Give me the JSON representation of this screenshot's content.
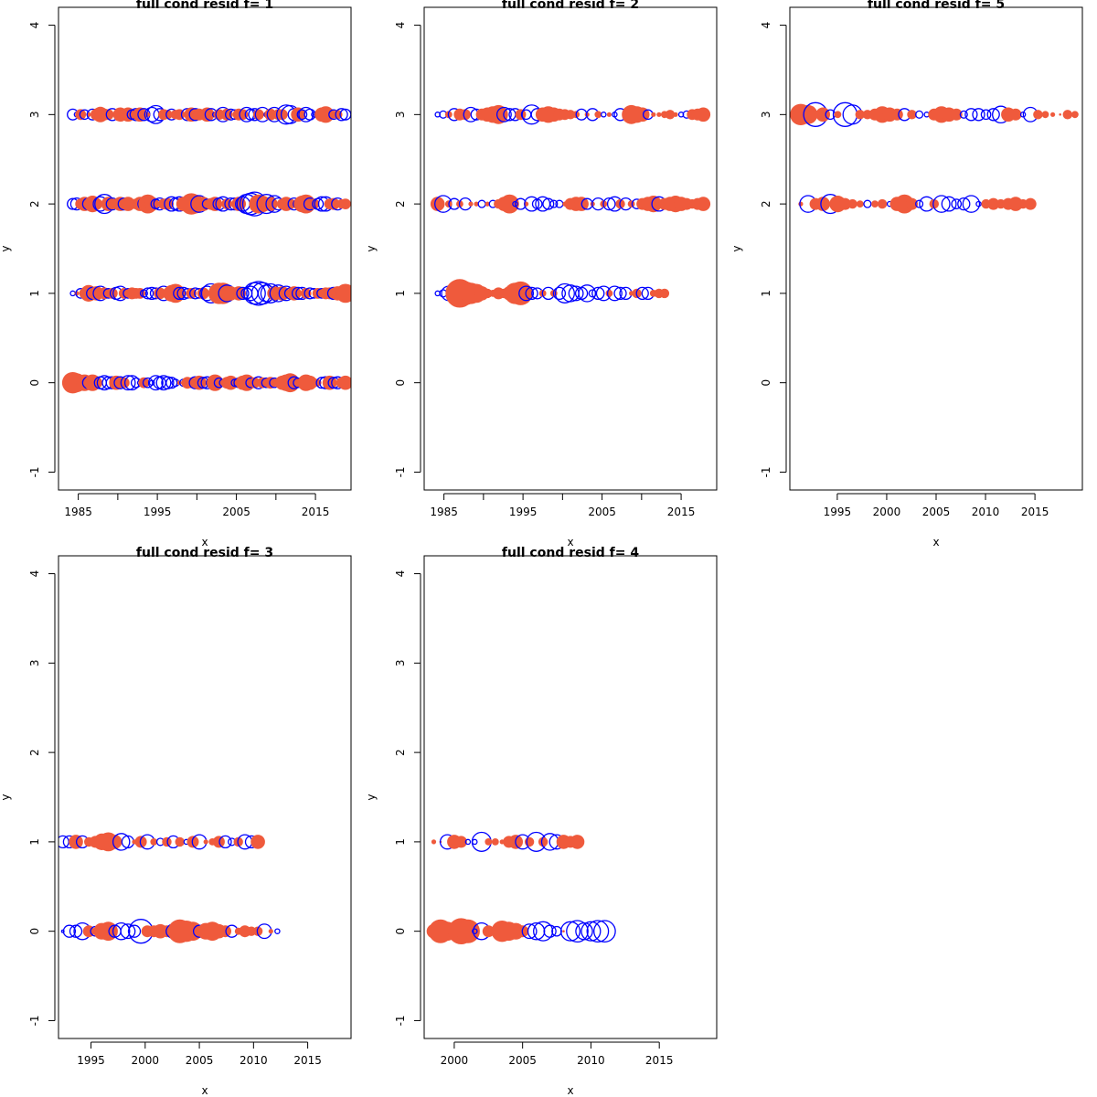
{
  "figure": {
    "panel_count": 5
  },
  "chart_data": [
    {
      "type": "scatter",
      "title": "full cond resid f= 1",
      "xlabel": "x",
      "ylabel": "y",
      "xlim": [
        1982.5,
        2019.5
      ],
      "ylim": [
        -1.2,
        4.2
      ],
      "xticks": [
        1985,
        1995,
        2005,
        2015
      ],
      "xtick_minor": [
        1990,
        2000,
        2010
      ],
      "yticks": [
        -1,
        0,
        1,
        2,
        3,
        4
      ],
      "size_meaning": "absolute residual",
      "colors": {
        "positive": "#ef5a3c",
        "negative": "#0000ff"
      },
      "rows": [
        {
          "y": 3,
          "x_start": 1984.3,
          "x_step": 0.5,
          "r": [
            -0.45,
            -0.2,
            0.45,
            -0.4,
            0.2,
            -0.45,
            0.5,
            0.65,
            0.5,
            0.45,
            -0.5,
            -0.2,
            0.6,
            0.45,
            0.6,
            -0.4,
            -0.5,
            0.6,
            -0.5,
            0.2,
            -0.6,
            -0.75,
            -0.5,
            0.45,
            0.4,
            -0.45,
            0.4,
            0.45,
            0.2,
            -0.5,
            0.6,
            -0.5,
            0.5,
            0.45,
            0.6,
            -0.5,
            -0.2,
            0.45,
            -0.6,
            0.5,
            -0.45,
            -0.4,
            0.5,
            0.45,
            -0.6,
            -0.45,
            -0.5,
            0.45,
            -0.6,
            -0.2,
            0.5,
            -0.6,
            0.45,
            0.45,
            -0.8,
            -0.75,
            -0.5,
            0.6,
            -0.4,
            -0.6,
            -0.45,
            -0.2,
            -0.3,
            0.6,
            0.7,
            0.5,
            -0.4,
            0.4,
            -0.5,
            -0.45,
            0.6,
            -0.5,
            -0.4,
            -0.5
          ]
        },
        {
          "y": 2,
          "x_start": 1984.3,
          "x_step": 0.5,
          "r": [
            -0.45,
            -0.5,
            0.45,
            0.6,
            -0.5,
            0.7,
            0.5,
            -0.6,
            -0.8,
            0.6,
            -0.5,
            0.45,
            0.6,
            -0.5,
            0.6,
            0.4,
            0.45,
            0.6,
            -0.5,
            0.8,
            0.6,
            -0.4,
            -0.5,
            0.45,
            0.5,
            -0.6,
            -0.5,
            -0.6,
            0.6,
            0.5,
            0.9,
            0.8,
            -0.7,
            0.6,
            -0.4,
            0.5,
            0.6,
            -0.5,
            -0.6,
            0.45,
            -0.5,
            -0.5,
            0.6,
            -0.6,
            -0.8,
            -0.9,
            -1.0,
            0.8,
            0.7,
            -0.8,
            0.6,
            -0.7,
            -0.5,
            0.45,
            0.6,
            0.45,
            -0.5,
            -0.4,
            0.7,
            0.8,
            -0.5,
            0.45,
            -0.45,
            -0.6,
            -0.6,
            0.45,
            0.5,
            -0.5,
            0.4,
            0.45,
            -0.5,
            -0.4,
            0.6
          ]
        },
        {
          "y": 1,
          "x_start": 1984.3,
          "x_step": 0.5,
          "r": [
            -0.2,
            0.2,
            -0.4,
            0.45,
            0.7,
            -0.5,
            0.6,
            -0.6,
            0.5,
            -0.4,
            0.45,
            -0.5,
            -0.6,
            0.45,
            -0.4,
            0.5,
            0.45,
            0.45,
            -0.3,
            -0.45,
            -0.5,
            -0.45,
            0.5,
            -0.6,
            0.45,
            0.7,
            0.8,
            -0.5,
            -0.5,
            -0.4,
            0.45,
            -0.45,
            -0.4,
            0.5,
            -0.6,
            -0.8,
            0.5,
            0.9,
            0.9,
            -0.7,
            0.6,
            0.45,
            0.6,
            -0.5,
            -0.45,
            -0.6,
            -0.9,
            -1.0,
            -0.9,
            -0.7,
            -0.8,
            0.6,
            -0.7,
            0.6,
            -0.6,
            -0.45,
            0.6,
            -0.5,
            -0.5,
            0.45,
            -0.45,
            -0.4,
            0.45,
            -0.4,
            0.5,
            0.5,
            -0.5,
            0.6,
            -0.4,
            0.8,
            -0.5,
            -0.5
          ]
        },
        {
          "y": 0,
          "x_start": 1984.3,
          "x_step": 0.5,
          "r": [
            0.9,
            0.8,
            -0.3,
            0.7,
            -0.5,
            0.7,
            0.5,
            -0.5,
            -0.6,
            -0.5,
            -0.5,
            0.6,
            -0.5,
            0.45,
            -0.6,
            -0.6,
            -0.4,
            -0.2,
            0.45,
            -0.4,
            -0.2,
            -0.6,
            -0.5,
            -0.6,
            -0.5,
            -0.45,
            -0.3,
            0.2,
            -0.3,
            0.5,
            0.45,
            -0.5,
            0.6,
            -0.45,
            -0.5,
            -0.4,
            0.7,
            -0.4,
            -0.3,
            0.5,
            0.6,
            -0.3,
            -0.4,
            0.6,
            0.7,
            -0.4,
            0.45,
            -0.5,
            0.45,
            -0.4,
            0.5,
            -0.4,
            0.4,
            0.6,
            0.7,
            0.8,
            -0.5,
            -0.4,
            0.45,
            0.7,
            0.6,
            0.4,
            0.3,
            -0.45,
            -0.5,
            0.6,
            -0.45,
            -0.5,
            0.45,
            0.6,
            -0.45,
            -0.2,
            0.5,
            0.4
          ]
        }
      ]
    },
    {
      "type": "scatter",
      "title": "full cond resid f= 2",
      "xlabel": "x",
      "ylabel": "y",
      "xlim": [
        1982.5,
        2019.5
      ],
      "ylim": [
        -1.2,
        4.2
      ],
      "xticks": [
        1985,
        1995,
        2005,
        2015
      ],
      "xtick_minor": [
        1990,
        2000,
        2010
      ],
      "yticks": [
        -1,
        0,
        1,
        2,
        3,
        4
      ],
      "size_meaning": "absolute residual",
      "colors": {
        "positive": "#ef5a3c",
        "negative": "#0000ff"
      },
      "rows": [
        {
          "y": 3,
          "x_start": 1984.2,
          "x_step": 0.7,
          "r": [
            -0.2,
            -0.3,
            0.3,
            -0.5,
            0.5,
            0.45,
            -0.6,
            -0.45,
            0.5,
            0.6,
            0.7,
            0.8,
            -0.6,
            -0.5,
            -0.5,
            0.45,
            -0.4,
            -0.8,
            -0.5,
            0.6,
            0.7,
            0.6,
            0.5,
            0.45,
            0.4,
            0.3,
            -0.45,
            0.2,
            -0.5,
            0.3,
            -0.2,
            0.2,
            -0.2,
            -0.5,
            0.3,
            0.8,
            0.7,
            0.6,
            -0.4,
            0.2,
            0.2,
            0.3,
            0.4,
            0.2,
            -0.2,
            -0.3,
            0.45,
            0.5,
            0.6
          ]
        },
        {
          "y": 2,
          "x_start": 1984.2,
          "x_step": 0.7,
          "r": [
            0.6,
            -0.7,
            0.3,
            -0.45,
            0.3,
            -0.5,
            0.2,
            0.2,
            -0.3,
            0.2,
            -0.3,
            0.4,
            0.6,
            0.8,
            -0.2,
            -0.45,
            0.2,
            -0.6,
            -0.4,
            -0.6,
            -0.45,
            -0.3,
            -0.3,
            0.2,
            0.5,
            0.6,
            0.6,
            -0.45,
            0.2,
            -0.5,
            0.3,
            -0.5,
            -0.6,
            0.4,
            -0.5,
            0.3,
            -0.4,
            0.5,
            0.6,
            0.7,
            -0.6,
            0.5,
            0.6,
            0.7,
            0.6,
            0.5,
            0.4,
            0.5,
            0.6
          ]
        },
        {
          "y": 1,
          "x_start": 1984.2,
          "x_step": 0.7,
          "r": [
            -0.2,
            -0.3,
            -0.6,
            -0.2,
            1.2,
            1.0,
            0.9,
            0.8,
            0.6,
            0.4,
            0.3,
            0.5,
            0.4,
            0.6,
            0.9,
            1.0,
            -0.6,
            -0.5,
            -0.45,
            0.3,
            -0.5,
            0.3,
            -0.5,
            -0.8,
            -0.7,
            -0.6,
            -0.5,
            -0.7,
            -0.3,
            -0.5,
            -0.6,
            0.3,
            -0.6,
            -0.5,
            -0.5,
            0.2,
            0.4,
            -0.5,
            -0.5,
            0.3,
            0.4,
            0.4
          ]
        }
      ]
    },
    {
      "type": "scatter",
      "title": "full cond resid f= 5",
      "xlabel": "x",
      "ylabel": "y",
      "xlim": [
        1990.2,
        2019.8
      ],
      "ylim": [
        -1.2,
        4.2
      ],
      "xticks": [
        1995,
        2000,
        2005,
        2010,
        2015
      ],
      "xtick_minor": [],
      "yticks": [
        -1,
        0,
        1,
        2,
        3,
        4
      ],
      "size_meaning": "absolute residual",
      "colors": {
        "positive": "#ef5a3c",
        "negative": "#0000ff"
      },
      "rows": [
        {
          "y": 3,
          "x_start": 1991.3,
          "x_step": 0.75,
          "r": [
            0.9,
            0.8,
            -1.0,
            0.6,
            -0.4,
            0.3,
            -1.0,
            -0.8,
            0.4,
            0.4,
            0.5,
            0.7,
            0.6,
            0.5,
            -0.5,
            0.4,
            -0.3,
            -0.2,
            0.5,
            0.7,
            0.6,
            0.5,
            -0.3,
            -0.5,
            -0.5,
            -0.4,
            -0.5,
            -0.7,
            0.6,
            0.5,
            -0.2,
            -0.6,
            0.4,
            0.3,
            0.2,
            0.1,
            0.4,
            0.3,
            0.4
          ]
        },
        {
          "y": 2,
          "x_start": 1991.3,
          "x_step": 0.75,
          "r": [
            0.2,
            -0.7,
            0.5,
            0.6,
            -0.8,
            0.7,
            0.5,
            0.4,
            0.3,
            -0.3,
            0.3,
            0.4,
            -0.2,
            0.6,
            0.8,
            0.5,
            -0.3,
            -0.6,
            0.4,
            -0.7,
            -0.6,
            -0.4,
            -0.5,
            -0.7,
            -0.2,
            0.4,
            0.5,
            0.4,
            0.5,
            0.6,
            0.4,
            0.5
          ]
        }
      ]
    },
    {
      "type": "scatter",
      "title": "full cond resid f= 3",
      "xlabel": "x",
      "ylabel": "y",
      "xlim": [
        1992.0,
        2019.0
      ],
      "ylim": [
        -1.2,
        4.2
      ],
      "xticks": [
        1995,
        2000,
        2005,
        2010,
        2015
      ],
      "xtick_minor": [],
      "yticks": [
        -1,
        0,
        1,
        2,
        3,
        4
      ],
      "size_meaning": "absolute residual",
      "colors": {
        "positive": "#ef5a3c",
        "negative": "#0000ff"
      },
      "rows": [
        {
          "y": 1,
          "x_start": 1992.4,
          "x_step": 0.6,
          "r": [
            -0.5,
            -0.5,
            0.6,
            -0.5,
            0.4,
            0.5,
            0.7,
            0.8,
            0.6,
            -0.7,
            -0.5,
            0.2,
            0.5,
            -0.6,
            0.3,
            -0.3,
            0.4,
            -0.5,
            0.4,
            -0.2,
            0.5,
            -0.6,
            0.2,
            0.3,
            0.5,
            -0.5,
            -0.3,
            0.4,
            -0.6,
            -0.5,
            0.6
          ]
        },
        {
          "y": 0,
          "x_start": 1992.4,
          "x_step": 0.6,
          "r": [
            -0.1,
            -0.5,
            -0.5,
            -0.7,
            0.5,
            -0.4,
            0.7,
            0.8,
            -0.5,
            -0.7,
            -0.6,
            -0.5,
            -1.0,
            0.5,
            0.5,
            0.6,
            0.5,
            -0.6,
            1.0,
            0.9,
            0.8,
            -0.5,
            0.7,
            0.8,
            0.6,
            0.5,
            -0.5,
            0.3,
            0.5,
            0.4,
            0.4,
            -0.6,
            0.2,
            -0.2
          ]
        }
      ]
    },
    {
      "type": "scatter",
      "title": "full cond resid f= 4",
      "xlabel": "x",
      "ylabel": "y",
      "xlim": [
        1997.8,
        2019.2
      ],
      "ylim": [
        -1.2,
        4.2
      ],
      "xticks": [
        2000,
        2005,
        2010,
        2015
      ],
      "xtick_minor": [],
      "yticks": [
        -1,
        0,
        1,
        2,
        3,
        4
      ],
      "size_meaning": "absolute residual",
      "colors": {
        "positive": "#ef5a3c",
        "negative": "#0000ff"
      },
      "rows": [
        {
          "y": 1,
          "x_start": 1998.5,
          "x_step": 0.5,
          "r": [
            0.2,
            0.1,
            -0.6,
            0.6,
            0.5,
            -0.2,
            -0.2,
            -0.8,
            0.3,
            0.3,
            0.2,
            0.5,
            0.6,
            -0.6,
            0.4,
            -0.8,
            0.4,
            -0.7,
            -0.6,
            0.6,
            0.5,
            0.6
          ]
        },
        {
          "y": 0,
          "x_start": 1998.5,
          "x_step": 0.5,
          "r": [
            0.6,
            1.0,
            0.8,
            0.7,
            1.1,
            1.0,
            -0.2,
            -0.7,
            0.5,
            0.4,
            0.9,
            0.8,
            0.7,
            0.5,
            -0.6,
            -0.7,
            -0.8,
            -0.5,
            -0.4,
            0.1,
            -0.8,
            -0.9,
            -0.7,
            -0.8,
            -0.9,
            -0.9
          ]
        }
      ]
    }
  ]
}
